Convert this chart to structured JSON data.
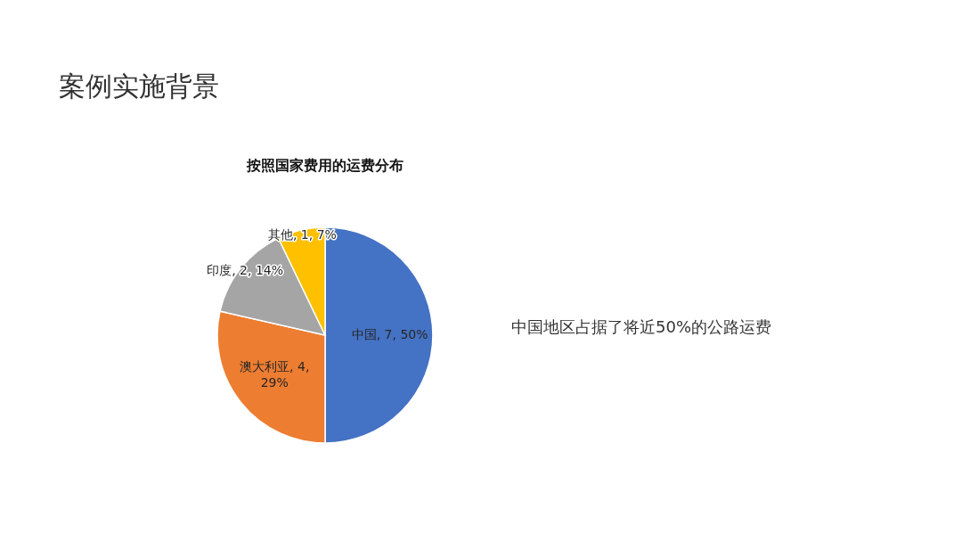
{
  "chart_data": {
    "type": "pie",
    "title": "案例实施背景",
    "subtitle": "按照国家费用的运费分布",
    "categories": [
      "中国",
      "澳大利亚",
      "印度",
      "其他"
    ],
    "values": [
      7,
      4,
      2,
      1
    ],
    "value_labels": [
      "7, 50%",
      "4, 29%",
      "2, 14%",
      "1, 7%"
    ],
    "colors": [
      "#4472c4",
      "#ed7d31",
      "#a5a5a5",
      "#ffc000"
    ],
    "annotations": [
      "中国地区占据了将近50%的公路运费"
    ]
  }
}
